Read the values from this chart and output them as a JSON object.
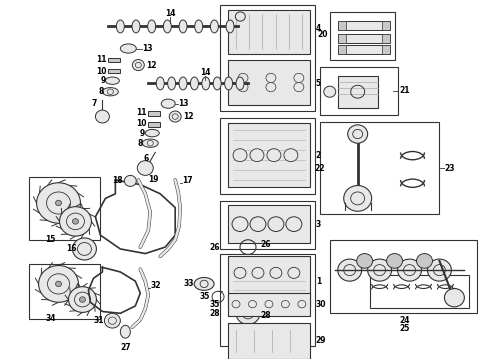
{
  "bg_color": "#ffffff",
  "lc": "#333333",
  "figsize": [
    4.9,
    3.6
  ],
  "dpi": 100,
  "gray1": "#c8c8c8",
  "gray2": "#e8e8e8",
  "gray3": "#aaaaaa"
}
